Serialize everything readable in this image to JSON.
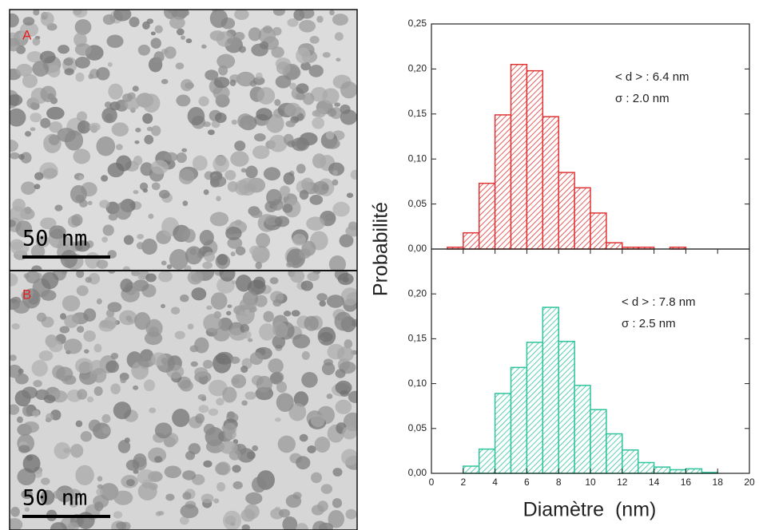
{
  "images": [
    {
      "label": "A",
      "scale_bar": "50 nm"
    },
    {
      "label": "B",
      "scale_bar": "50 nm"
    }
  ],
  "chart_data": [
    {
      "type": "histogram",
      "ylabel": "Probabilité",
      "color": "#e03434",
      "bins": [
        1,
        2,
        3,
        4,
        5,
        6,
        7,
        8,
        9,
        10,
        11,
        12,
        13,
        14,
        15,
        16
      ],
      "values": [
        0.002,
        0.018,
        0.073,
        0.149,
        0.205,
        0.198,
        0.147,
        0.085,
        0.068,
        0.04,
        0.007,
        0.002,
        0.002,
        0,
        0.002
      ],
      "xlim": [
        0,
        20
      ],
      "ylim": [
        0,
        0.25
      ],
      "yticks": [
        {
          "value": 0,
          "label": "0,00"
        },
        {
          "value": 0.05,
          "label": "0,05"
        },
        {
          "value": 0.1,
          "label": "0,10"
        },
        {
          "value": 0.15,
          "label": "0,15"
        },
        {
          "value": 0.2,
          "label": "0,20"
        },
        {
          "value": 0.25,
          "label": "0,25"
        }
      ],
      "annotations": [
        "< d > : 6.4 nm",
        "σ : 2.0 nm"
      ]
    },
    {
      "type": "histogram",
      "xlabel": "Diamètre  (nm)",
      "color": "#2ec49c",
      "bins": [
        2,
        3,
        4,
        5,
        6,
        7,
        8,
        9,
        10,
        11,
        12,
        13,
        14,
        15,
        16,
        17,
        18
      ],
      "values": [
        0.008,
        0.027,
        0.089,
        0.118,
        0.146,
        0.185,
        0.147,
        0.098,
        0.071,
        0.044,
        0.026,
        0.012,
        0.007,
        0.004,
        0.005,
        0.001
      ],
      "xlim": [
        0,
        20
      ],
      "ylim": [
        0,
        0.25
      ],
      "xticks": [
        0,
        2,
        4,
        6,
        8,
        10,
        12,
        14,
        16,
        18,
        20
      ],
      "yticks": [
        {
          "value": 0,
          "label": "0,00"
        },
        {
          "value": 0.05,
          "label": "0,05"
        },
        {
          "value": 0.1,
          "label": "0,10"
        },
        {
          "value": 0.15,
          "label": "0,15"
        },
        {
          "value": 0.2,
          "label": "0,20"
        }
      ],
      "annotations": [
        "< d > : 7.8 nm",
        "σ : 2.5 nm"
      ]
    }
  ]
}
